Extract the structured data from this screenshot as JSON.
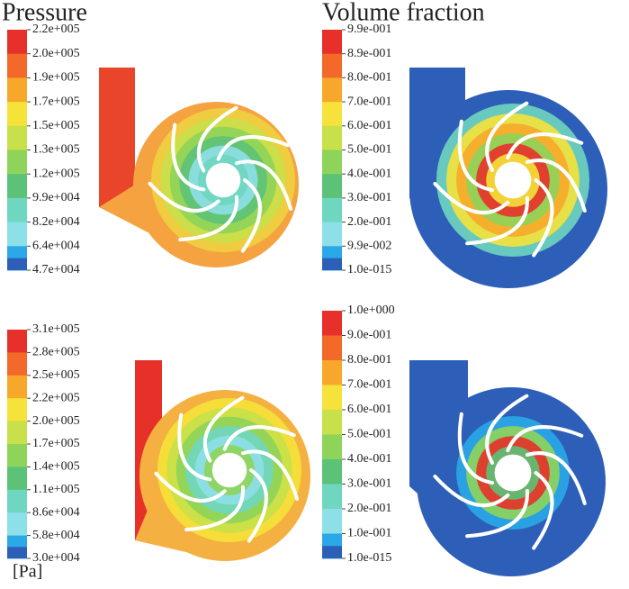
{
  "titles": {
    "pressure": "Pressure",
    "volume_fraction": "Volume fraction"
  },
  "unit": "[Pa]",
  "panels": [
    {
      "labels": [
        "2.2e+005",
        "2.0e+005",
        "1.9e+005",
        "1.7e+005",
        "1.5e+005",
        "1.3e+005",
        "1.2e+005",
        "9.9e+004",
        "8.2e+004",
        "6.4e+004",
        "4.7e+004"
      ]
    },
    {
      "labels": [
        "9.9e-001",
        "8.9e-001",
        "8.0e-001",
        "7.0e-001",
        "6.0e-001",
        "5.0e-001",
        "4.0e-001",
        "3.0e-001",
        "2.0e-001",
        "9.9e-002",
        "1.0e-015"
      ]
    },
    {
      "labels": [
        "3.1e+005",
        "2.8e+005",
        "2.5e+005",
        "2.2e+005",
        "2.0e+005",
        "1.7e+005",
        "1.4e+005",
        "1.1e+005",
        "8.6e+004",
        "5.8e+004",
        "3.0e+004"
      ]
    },
    {
      "labels": [
        "1.0e+000",
        "9.0e-001",
        "8.0e-001",
        "7.0e-001",
        "6.0e-001",
        "5.0e-001",
        "4.0e-001",
        "3.0e-001",
        "2.0e-001",
        "1.0e-001",
        "1.0e-015"
      ]
    }
  ]
}
